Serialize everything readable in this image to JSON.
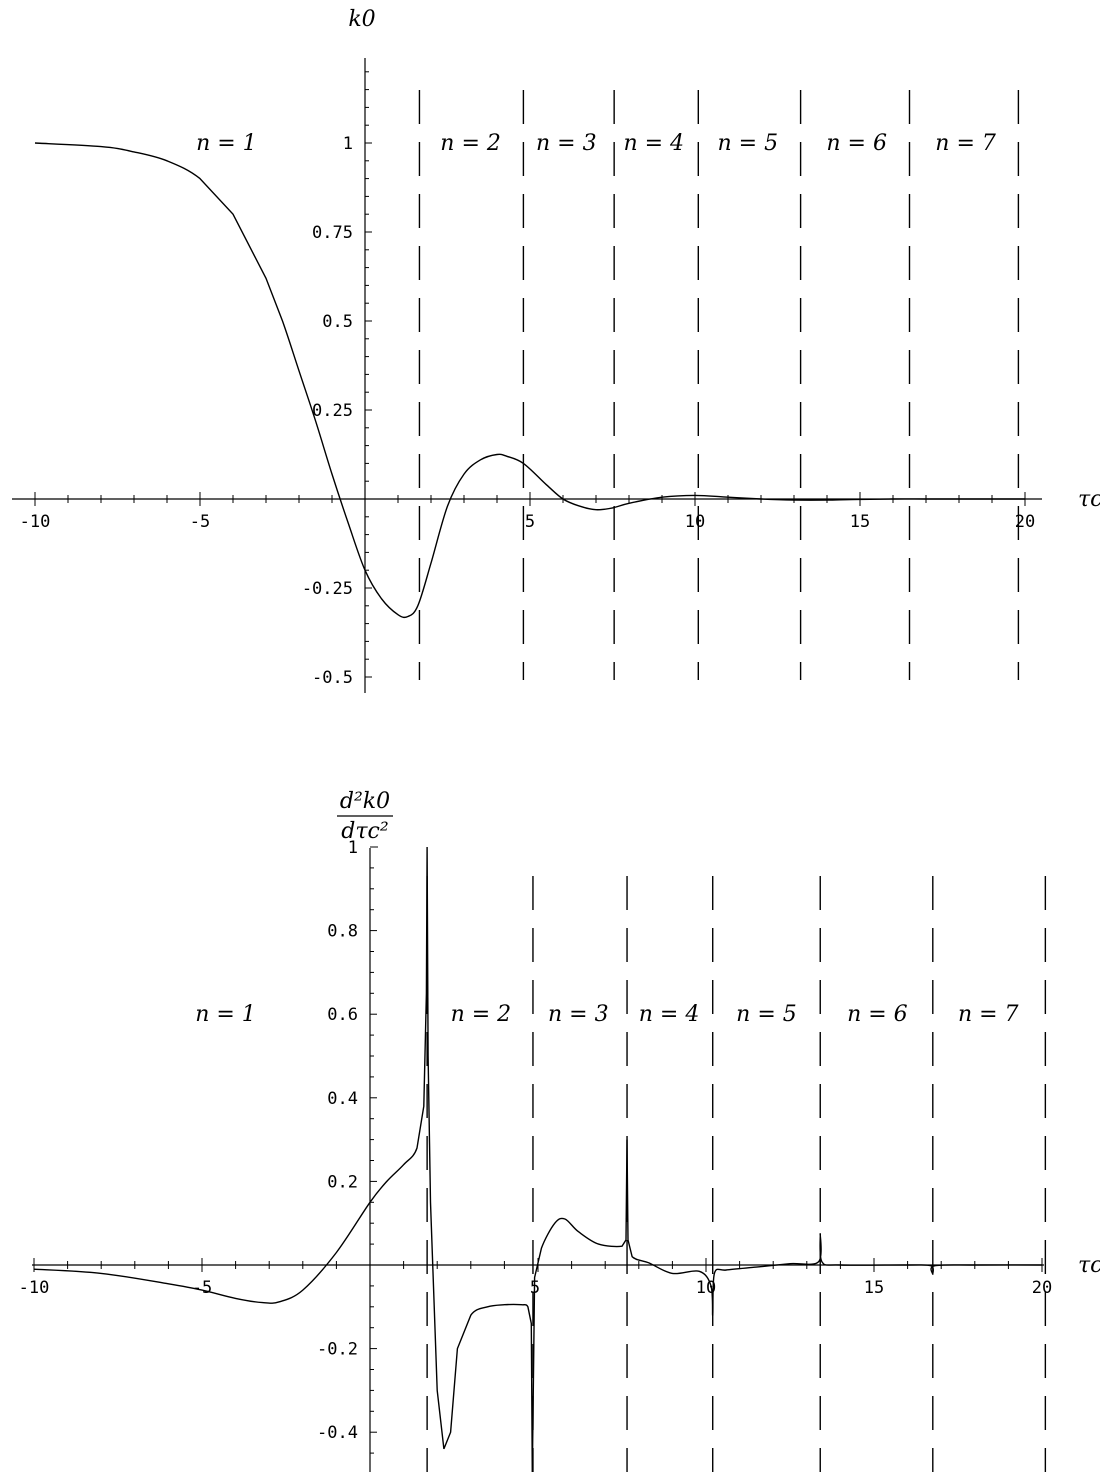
{
  "chart_data": [
    {
      "type": "line",
      "panel": "top",
      "ylabel": "k0",
      "xlabel": "τc",
      "xlim": [
        -10,
        20
      ],
      "ylim": [
        -0.5,
        1.2
      ],
      "x_ticks": [
        -10,
        -5,
        5,
        10,
        15,
        20
      ],
      "x_tick_labels": [
        "-10",
        "-5",
        "5",
        "10",
        "15",
        "20"
      ],
      "y_ticks": [
        -0.5,
        -0.25,
        0.25,
        0.5,
        0.75,
        1
      ],
      "y_tick_labels": [
        "-0.5",
        "-0.25",
        "0.25",
        "0.5",
        "0.75",
        "1"
      ],
      "grid": false,
      "boundaries": [
        1.65,
        4.8,
        7.55,
        10.1,
        13.2,
        16.5,
        19.8
      ],
      "regions": [
        {
          "label": "n = 1",
          "x": -4.2
        },
        {
          "label": "n = 2",
          "x": 3.2
        },
        {
          "label": "n = 3",
          "x": 6.1
        },
        {
          "label": "n = 4",
          "x": 8.75
        },
        {
          "label": "n = 5",
          "x": 11.6
        },
        {
          "label": "n = 6",
          "x": 14.9
        },
        {
          "label": "n = 7",
          "x": 18.2
        }
      ],
      "region_label_y": 1,
      "series": [
        {
          "x": [
            -10,
            -8,
            -7,
            -6,
            -5,
            -4,
            -3,
            -2.5,
            -2,
            -1.5,
            -1,
            -0.5,
            0,
            0.5,
            1,
            1.3,
            1.6,
            2,
            2.5,
            3,
            3.5,
            4,
            4.3,
            4.8,
            5.5,
            6,
            6.5,
            7,
            7.5,
            8,
            9,
            10,
            11,
            12,
            13,
            14,
            15,
            16,
            17,
            18,
            19,
            20
          ],
          "y": [
            1.0,
            0.99,
            0.975,
            0.95,
            0.9,
            0.8,
            0.62,
            0.5,
            0.36,
            0.22,
            0.07,
            -0.07,
            -0.2,
            -0.28,
            -0.325,
            -0.33,
            -0.3,
            -0.18,
            -0.02,
            0.07,
            0.11,
            0.125,
            0.12,
            0.1,
            0.04,
            0.0,
            -0.02,
            -0.03,
            -0.025,
            -0.012,
            0.005,
            0.01,
            0.005,
            0.0,
            -0.003,
            -0.003,
            -0.001,
            0.0,
            0.0,
            0.0,
            0.0,
            0.0
          ]
        }
      ]
    },
    {
      "type": "line",
      "panel": "bottom",
      "ylabel": "d²k0/dτc²",
      "ylabel_num": "d²k0",
      "ylabel_den": "dτc²",
      "xlabel": "τc",
      "xlim": [
        -10,
        20
      ],
      "ylim": [
        -0.5,
        1
      ],
      "x_ticks": [
        -10,
        -5,
        10,
        15,
        20
      ],
      "x_tick_labels": [
        "-10",
        "-5",
        "10",
        "15",
        "20"
      ],
      "x_extra_labels": [
        {
          "x": 5,
          "text": "5"
        }
      ],
      "y_ticks": [
        -0.4,
        -0.2,
        0.2,
        0.4,
        0.6,
        0.8,
        1
      ],
      "y_tick_labels": [
        "-0.4",
        "-0.2",
        "0.2",
        "0.4",
        "0.6",
        "0.8",
        "1"
      ],
      "grid": false,
      "boundaries": [
        1.7,
        4.85,
        7.65,
        10.2,
        13.4,
        16.75,
        20.1
      ],
      "regions": [
        {
          "label": "n = 1",
          "x": -4.3
        },
        {
          "label": "n = 2",
          "x": 3.3
        },
        {
          "label": "n = 3",
          "x": 6.2
        },
        {
          "label": "n = 4",
          "x": 8.9
        },
        {
          "label": "n = 5",
          "x": 11.8
        },
        {
          "label": "n = 6",
          "x": 15.1
        },
        {
          "label": "n = 7",
          "x": 18.4
        }
      ],
      "region_label_y": 0.6,
      "series": [
        {
          "x": [
            -10,
            -8,
            -6,
            -5,
            -4,
            -3.2,
            -2.7,
            -2,
            -1,
            0,
            0.5,
            1,
            1.4,
            1.6,
            1.68,
            1.7,
            1.73,
            1.8,
            2.0,
            2.2,
            2.4,
            2.6,
            3.0,
            3.5,
            4.0,
            4.5,
            4.7,
            4.8,
            4.83,
            4.86,
            4.9,
            5.1,
            5.5,
            5.8,
            6.2,
            6.8,
            7.5,
            7.62,
            7.65,
            7.68,
            7.8,
            8.3,
            9.0,
            9.8,
            10.15,
            10.2,
            10.25,
            10.6,
            11.5,
            12.5,
            13.35,
            13.4,
            13.45,
            14,
            16,
            16.7,
            16.75,
            16.8,
            18,
            20
          ],
          "y": [
            -0.01,
            -0.02,
            -0.045,
            -0.06,
            -0.08,
            -0.09,
            -0.088,
            -0.06,
            0.03,
            0.15,
            0.2,
            0.24,
            0.28,
            0.38,
            0.65,
            1.0,
            0.5,
            0.15,
            -0.3,
            -0.44,
            -0.4,
            -0.2,
            -0.12,
            -0.1,
            -0.095,
            -0.095,
            -0.1,
            -0.14,
            -0.5,
            -0.3,
            -0.03,
            0.04,
            0.1,
            0.11,
            0.08,
            0.05,
            0.045,
            0.06,
            0.3,
            0.06,
            0.02,
            0.005,
            -0.02,
            -0.015,
            -0.05,
            -0.12,
            -0.02,
            -0.012,
            -0.005,
            0.003,
            0.008,
            0.075,
            0.008,
            0.0,
            0.0,
            -0.002,
            -0.022,
            -0.002,
            0.0,
            0.0
          ]
        }
      ]
    }
  ]
}
